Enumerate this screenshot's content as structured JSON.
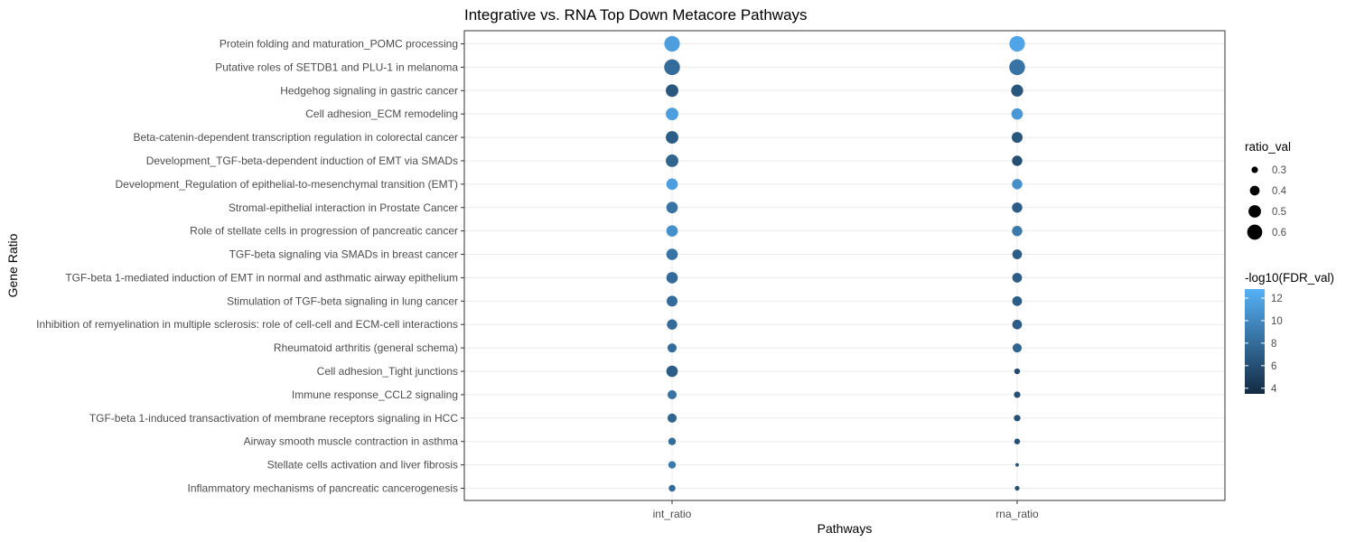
{
  "chart_data": {
    "type": "scatter",
    "title": "Integrative vs. RNA Top Down Metacore Pathways",
    "xlabel": "Pathways",
    "ylabel": "Gene Ratio",
    "x_categories": [
      "int_ratio",
      "rna_ratio"
    ],
    "y_categories": [
      "Protein folding and maturation_POMC processing",
      "Putative roles of SETDB1 and PLU-1 in melanoma",
      "Hedgehog signaling in gastric cancer",
      "Cell adhesion_ECM remodeling",
      "Beta-catenin-dependent transcription regulation in colorectal cancer",
      "Development_TGF-beta-dependent induction of EMT via SMADs",
      "Development_Regulation of epithelial-to-mesenchymal transition (EMT)",
      "Stromal-epithelial interaction in Prostate Cancer",
      "Role of stellate cells in progression of pancreatic cancer",
      "TGF-beta signaling via SMADs in breast cancer",
      "TGF-beta 1-mediated induction of EMT in normal and asthmatic airway epithelium",
      "Stimulation of TGF-beta signaling in lung cancer",
      "Inhibition of remyelination in multiple sclerosis: role of cell-cell and ECM-cell interactions",
      "Rheumatoid arthritis (general schema)",
      "Cell adhesion_Tight junctions",
      "Immune response_CCL2 signaling",
      "TGF-beta 1-induced transactivation of membrane receptors signaling in HCC",
      "Airway smooth muscle contraction in asthma",
      "Stellate cells activation and liver fibrosis",
      "Inflammatory mechanisms of pancreatic cancerogenesis"
    ],
    "points": [
      {
        "x": "int_ratio",
        "y": 0,
        "ratio_val": 0.62,
        "neg_log10_fdr": 11.5
      },
      {
        "x": "int_ratio",
        "y": 1,
        "ratio_val": 0.63,
        "neg_log10_fdr": 8.0
      },
      {
        "x": "int_ratio",
        "y": 2,
        "ratio_val": 0.5,
        "neg_log10_fdr": 6.5
      },
      {
        "x": "int_ratio",
        "y": 3,
        "ratio_val": 0.5,
        "neg_log10_fdr": 11.5
      },
      {
        "x": "int_ratio",
        "y": 4,
        "ratio_val": 0.5,
        "neg_log10_fdr": 7.0
      },
      {
        "x": "int_ratio",
        "y": 5,
        "ratio_val": 0.5,
        "neg_log10_fdr": 7.5
      },
      {
        "x": "int_ratio",
        "y": 6,
        "ratio_val": 0.46,
        "neg_log10_fdr": 11.5
      },
      {
        "x": "int_ratio",
        "y": 7,
        "ratio_val": 0.46,
        "neg_log10_fdr": 8.5
      },
      {
        "x": "int_ratio",
        "y": 8,
        "ratio_val": 0.46,
        "neg_log10_fdr": 10.5
      },
      {
        "x": "int_ratio",
        "y": 9,
        "ratio_val": 0.46,
        "neg_log10_fdr": 8.5
      },
      {
        "x": "int_ratio",
        "y": 10,
        "ratio_val": 0.46,
        "neg_log10_fdr": 8.0
      },
      {
        "x": "int_ratio",
        "y": 11,
        "ratio_val": 0.44,
        "neg_log10_fdr": 8.0
      },
      {
        "x": "int_ratio",
        "y": 12,
        "ratio_val": 0.42,
        "neg_log10_fdr": 8.0
      },
      {
        "x": "int_ratio",
        "y": 13,
        "ratio_val": 0.38,
        "neg_log10_fdr": 8.0
      },
      {
        "x": "int_ratio",
        "y": 14,
        "ratio_val": 0.46,
        "neg_log10_fdr": 7.0
      },
      {
        "x": "int_ratio",
        "y": 15,
        "ratio_val": 0.38,
        "neg_log10_fdr": 8.5
      },
      {
        "x": "int_ratio",
        "y": 16,
        "ratio_val": 0.38,
        "neg_log10_fdr": 7.5
      },
      {
        "x": "int_ratio",
        "y": 17,
        "ratio_val": 0.33,
        "neg_log10_fdr": 8.0
      },
      {
        "x": "int_ratio",
        "y": 18,
        "ratio_val": 0.33,
        "neg_log10_fdr": 9.0
      },
      {
        "x": "int_ratio",
        "y": 19,
        "ratio_val": 0.31,
        "neg_log10_fdr": 8.0
      },
      {
        "x": "rna_ratio",
        "y": 0,
        "ratio_val": 0.62,
        "neg_log10_fdr": 12.0
      },
      {
        "x": "rna_ratio",
        "y": 1,
        "ratio_val": 0.63,
        "neg_log10_fdr": 8.5
      },
      {
        "x": "rna_ratio",
        "y": 2,
        "ratio_val": 0.48,
        "neg_log10_fdr": 6.5
      },
      {
        "x": "rna_ratio",
        "y": 3,
        "ratio_val": 0.46,
        "neg_log10_fdr": 11.0
      },
      {
        "x": "rna_ratio",
        "y": 4,
        "ratio_val": 0.44,
        "neg_log10_fdr": 6.5
      },
      {
        "x": "rna_ratio",
        "y": 5,
        "ratio_val": 0.42,
        "neg_log10_fdr": 6.0
      },
      {
        "x": "rna_ratio",
        "y": 6,
        "ratio_val": 0.42,
        "neg_log10_fdr": 10.5
      },
      {
        "x": "rna_ratio",
        "y": 7,
        "ratio_val": 0.42,
        "neg_log10_fdr": 7.0
      },
      {
        "x": "rna_ratio",
        "y": 8,
        "ratio_val": 0.42,
        "neg_log10_fdr": 9.0
      },
      {
        "x": "rna_ratio",
        "y": 9,
        "ratio_val": 0.4,
        "neg_log10_fdr": 7.0
      },
      {
        "x": "rna_ratio",
        "y": 10,
        "ratio_val": 0.4,
        "neg_log10_fdr": 7.0
      },
      {
        "x": "rna_ratio",
        "y": 11,
        "ratio_val": 0.4,
        "neg_log10_fdr": 7.0
      },
      {
        "x": "rna_ratio",
        "y": 12,
        "ratio_val": 0.4,
        "neg_log10_fdr": 7.0
      },
      {
        "x": "rna_ratio",
        "y": 13,
        "ratio_val": 0.38,
        "neg_log10_fdr": 7.5
      },
      {
        "x": "rna_ratio",
        "y": 14,
        "ratio_val": 0.28,
        "neg_log10_fdr": 5.5
      },
      {
        "x": "rna_ratio",
        "y": 15,
        "ratio_val": 0.3,
        "neg_log10_fdr": 6.0
      },
      {
        "x": "rna_ratio",
        "y": 16,
        "ratio_val": 0.3,
        "neg_log10_fdr": 6.0
      },
      {
        "x": "rna_ratio",
        "y": 17,
        "ratio_val": 0.28,
        "neg_log10_fdr": 6.0
      },
      {
        "x": "rna_ratio",
        "y": 18,
        "ratio_val": 0.22,
        "neg_log10_fdr": 6.5
      },
      {
        "x": "rna_ratio",
        "y": 19,
        "ratio_val": 0.25,
        "neg_log10_fdr": 6.0
      }
    ],
    "size_legend": {
      "title": "ratio_val",
      "values": [
        0.3,
        0.4,
        0.5,
        0.6
      ],
      "labels": [
        "0.3",
        "0.4",
        "0.5",
        "0.6"
      ]
    },
    "color_legend": {
      "title": "-log10(FDR_val)",
      "ticks": [
        4,
        6,
        8,
        10,
        12
      ],
      "tick_labels": [
        "4",
        "6",
        "8",
        "10",
        "12"
      ],
      "range": [
        3.5,
        12.8
      ],
      "low_color": "#132B43",
      "high_color": "#56B1F7"
    },
    "grid": true,
    "legend_position": "right"
  }
}
